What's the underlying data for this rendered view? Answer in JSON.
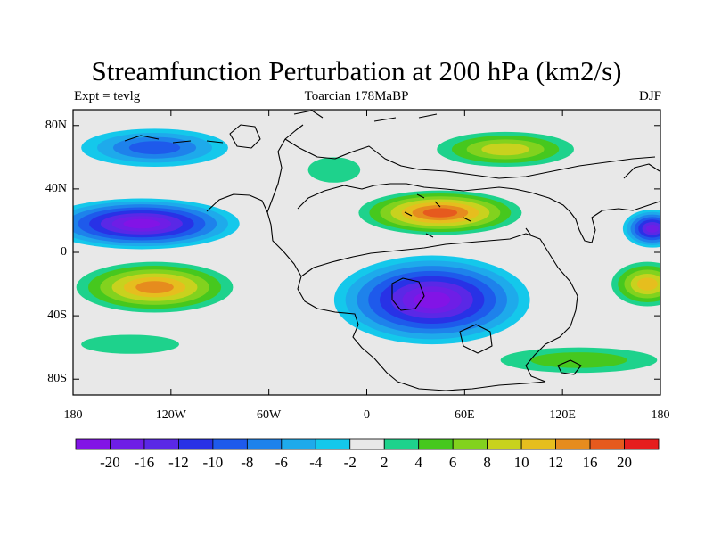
{
  "title": "Streamfunction Perturbation at 200 hPa (km2/s)",
  "subtitle_left": "Expt = tevlg",
  "subtitle_center": "Toarcian 178MaBP",
  "subtitle_right": "DJF",
  "map": {
    "projection": "cylindrical-equidistant",
    "lon_range": [
      -180,
      180
    ],
    "lat_range": [
      -90,
      90
    ],
    "x_ticks": [
      {
        "lon": -180,
        "label": "180"
      },
      {
        "lon": -120,
        "label": "120W"
      },
      {
        "lon": -60,
        "label": "60W"
      },
      {
        "lon": 0,
        "label": "0"
      },
      {
        "lon": 60,
        "label": "60E"
      },
      {
        "lon": 120,
        "label": "120E"
      },
      {
        "lon": 180,
        "label": "180"
      }
    ],
    "y_ticks": [
      {
        "lat": 80,
        "label": "80N"
      },
      {
        "lat": 40,
        "label": "40N"
      },
      {
        "lat": 0,
        "label": "0"
      },
      {
        "lat": -40,
        "label": "40S"
      },
      {
        "lat": -80,
        "label": "80S"
      }
    ],
    "background_color": "#e8e8e8"
  },
  "colorbar": {
    "levels": [
      "-20",
      "-16",
      "-12",
      "-10",
      "-8",
      "-6",
      "-4",
      "-2",
      "2",
      "4",
      "6",
      "8",
      "10",
      "12",
      "16",
      "20"
    ],
    "colors": [
      "#8214e6",
      "#6e1ee6",
      "#5a28e6",
      "#2832e6",
      "#1e5aeb",
      "#1e82eb",
      "#1eaaeb",
      "#14c8eb",
      "#e8e8e8",
      "#1ed28c",
      "#46c81e",
      "#82d21e",
      "#c8d21e",
      "#e6be1e",
      "#e68c1e",
      "#e65a1e",
      "#e61e1e"
    ]
  },
  "features": [
    {
      "name": "north-pacific-high-blue",
      "lon": -138,
      "lat": 18,
      "rx": 60,
      "ry": 16,
      "level": -20
    },
    {
      "name": "south-pacific-low-red",
      "lon": -130,
      "lat": -22,
      "rx": 48,
      "ry": 16,
      "level": 16
    },
    {
      "name": "tethys-high-red",
      "lon": 45,
      "lat": 25,
      "rx": 50,
      "ry": 14,
      "level": 20
    },
    {
      "name": "southern-pangea-low-purple",
      "lon": 40,
      "lat": -30,
      "rx": 60,
      "ry": 28,
      "level": -20
    },
    {
      "name": "arctic-blue-west",
      "lon": -130,
      "lat": 66,
      "rx": 45,
      "ry": 12,
      "level": -8
    },
    {
      "name": "siberia-yellow",
      "lon": 85,
      "lat": 65,
      "rx": 42,
      "ry": 11,
      "level": 10
    },
    {
      "name": "east-pacific-purple",
      "lon": 175,
      "lat": 15,
      "rx": 18,
      "ry": 12,
      "level": -16
    },
    {
      "name": "south-pacific-east-orange",
      "lon": 172,
      "lat": -20,
      "rx": 22,
      "ry": 14,
      "level": 12
    },
    {
      "name": "southern-ocean-green",
      "lon": 130,
      "lat": -68,
      "rx": 48,
      "ry": 8,
      "level": 6
    },
    {
      "name": "north-atlantic-green",
      "lon": -20,
      "lat": 52,
      "rx": 16,
      "ry": 8,
      "level": 4
    },
    {
      "name": "high-south-pacific-green",
      "lon": -145,
      "lat": -58,
      "rx": 30,
      "ry": 6,
      "level": 4
    }
  ]
}
